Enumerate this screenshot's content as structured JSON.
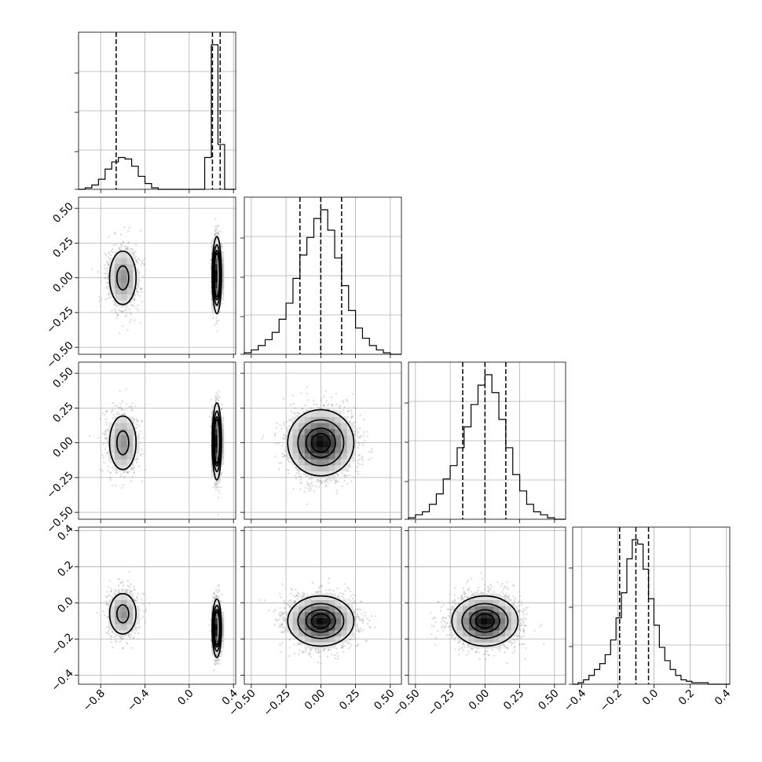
{
  "chart_data": {
    "type": "corner",
    "dimensions": 4,
    "parameters": [
      {
        "index": 0,
        "range": [
          -1.0,
          0.42
        ],
        "ticks": [
          -0.8,
          -0.4,
          0.0,
          0.4
        ],
        "tick_labels": [
          "−0.8",
          "−0.4",
          "0.0",
          "0.4"
        ]
      },
      {
        "index": 1,
        "range": [
          -0.55,
          0.58
        ],
        "ticks": [
          -0.5,
          -0.25,
          0.0,
          0.25,
          0.5
        ],
        "tick_labels": [
          "−0.50",
          "−0.25",
          "0.00",
          "0.25",
          "0.50"
        ]
      },
      {
        "index": 2,
        "range": [
          -0.55,
          0.58
        ],
        "ticks": [
          -0.5,
          -0.25,
          0.0,
          0.25,
          0.5
        ],
        "tick_labels": [
          "−0.50",
          "−0.25",
          "0.00",
          "0.25",
          "0.50"
        ]
      },
      {
        "index": 3,
        "range": [
          -0.45,
          0.42
        ],
        "ticks": [
          -0.4,
          -0.2,
          0.0,
          0.2,
          0.4
        ],
        "tick_labels": [
          "−0.4",
          "−0.2",
          "0.0",
          "0.2",
          "0.4"
        ]
      }
    ],
    "histograms": [
      {
        "param": 0,
        "quantile_lines": [
          -0.66,
          0.21,
          0.28
        ],
        "bin_edges": [
          -1.0,
          -0.94,
          -0.88,
          -0.82,
          -0.76,
          -0.7,
          -0.64,
          -0.58,
          -0.52,
          -0.46,
          -0.4,
          -0.34,
          -0.28,
          -0.22,
          -0.16,
          -0.1,
          -0.04,
          0.02,
          0.08,
          0.14,
          0.2,
          0.26,
          0.32,
          0.38,
          0.42
        ],
        "counts": [
          0,
          0.01,
          0.03,
          0.07,
          0.14,
          0.19,
          0.22,
          0.21,
          0.16,
          0.09,
          0.04,
          0.01,
          0,
          0,
          0,
          0,
          0,
          0,
          0,
          0.22,
          1.0,
          0.31,
          0,
          0
        ]
      },
      {
        "param": 1,
        "quantile_lines": [
          -0.15,
          0.0,
          0.15
        ],
        "bin_edges": [
          -0.55,
          -0.5,
          -0.45,
          -0.4,
          -0.35,
          -0.3,
          -0.25,
          -0.2,
          -0.15,
          -0.1,
          -0.05,
          0.0,
          0.05,
          0.1,
          0.15,
          0.2,
          0.25,
          0.3,
          0.35,
          0.4,
          0.45,
          0.5,
          0.58
        ],
        "counts": [
          0.01,
          0.03,
          0.06,
          0.1,
          0.15,
          0.24,
          0.35,
          0.52,
          0.68,
          0.8,
          0.93,
          0.99,
          0.85,
          0.66,
          0.47,
          0.3,
          0.18,
          0.11,
          0.06,
          0.03,
          0.01,
          0.0
        ]
      },
      {
        "param": 2,
        "quantile_lines": [
          -0.16,
          0.0,
          0.15
        ],
        "bin_edges": [
          -0.55,
          -0.5,
          -0.45,
          -0.4,
          -0.35,
          -0.3,
          -0.25,
          -0.2,
          -0.15,
          -0.1,
          -0.05,
          0.0,
          0.05,
          0.1,
          0.15,
          0.2,
          0.25,
          0.3,
          0.35,
          0.4,
          0.45,
          0.5,
          0.58
        ],
        "counts": [
          0.01,
          0.03,
          0.05,
          0.1,
          0.17,
          0.27,
          0.36,
          0.48,
          0.62,
          0.77,
          0.9,
          0.97,
          0.85,
          0.67,
          0.48,
          0.3,
          0.19,
          0.1,
          0.05,
          0.03,
          0.01,
          0.0
        ]
      },
      {
        "param": 3,
        "quantile_lines": [
          -0.19,
          -0.1,
          -0.03
        ],
        "bin_edges": [
          -0.45,
          -0.42,
          -0.39,
          -0.36,
          -0.33,
          -0.3,
          -0.27,
          -0.24,
          -0.21,
          -0.18,
          -0.15,
          -0.12,
          -0.09,
          -0.06,
          -0.03,
          0.0,
          0.03,
          0.06,
          0.09,
          0.12,
          0.15,
          0.18,
          0.21,
          0.24,
          0.27,
          0.3,
          0.33,
          0.36,
          0.42
        ],
        "counts": [
          0.0,
          0.01,
          0.03,
          0.06,
          0.1,
          0.14,
          0.2,
          0.3,
          0.45,
          0.62,
          0.85,
          0.98,
          0.95,
          0.78,
          0.58,
          0.4,
          0.25,
          0.16,
          0.1,
          0.06,
          0.03,
          0.02,
          0.01,
          0.01,
          0.01,
          0.0,
          0.0,
          0.0
        ]
      }
    ],
    "pairs": [
      {
        "row": 1,
        "col": 0,
        "modes": [
          {
            "mx": -0.6,
            "my": 0.0,
            "sx": 0.075,
            "sy": 0.12,
            "w": 0.3,
            "d": 0.25
          },
          {
            "mx": 0.25,
            "my": 0.02,
            "sx": 0.018,
            "sy": 0.12,
            "w": 0.7,
            "d": 1.0
          }
        ]
      },
      {
        "row": 2,
        "col": 0,
        "modes": [
          {
            "mx": -0.6,
            "my": 0.0,
            "sx": 0.075,
            "sy": 0.12,
            "w": 0.3,
            "d": 0.25
          },
          {
            "mx": 0.25,
            "my": 0.01,
            "sx": 0.018,
            "sy": 0.12,
            "w": 0.7,
            "d": 1.0
          }
        ]
      },
      {
        "row": 2,
        "col": 1,
        "modes": [
          {
            "mx": 0.0,
            "my": 0.0,
            "sx": 0.12,
            "sy": 0.12,
            "w": 1.0,
            "d": 1.0
          }
        ]
      },
      {
        "row": 3,
        "col": 0,
        "modes": [
          {
            "mx": -0.6,
            "my": -0.06,
            "sx": 0.075,
            "sy": 0.07,
            "w": 0.3,
            "d": 0.25
          },
          {
            "mx": 0.25,
            "my": -0.14,
            "sx": 0.018,
            "sy": 0.07,
            "w": 0.7,
            "d": 1.0
          }
        ]
      },
      {
        "row": 3,
        "col": 1,
        "modes": [
          {
            "mx": 0.0,
            "my": -0.1,
            "sx": 0.12,
            "sy": 0.07,
            "w": 1.0,
            "d": 1.0
          }
        ]
      },
      {
        "row": 3,
        "col": 2,
        "modes": [
          {
            "mx": 0.0,
            "my": -0.1,
            "sx": 0.12,
            "sy": 0.07,
            "w": 1.0,
            "d": 1.0
          }
        ]
      }
    ],
    "contour_levels": [
      0.14,
      0.39,
      0.68,
      0.86
    ],
    "grid": true,
    "title": "",
    "legend": "none"
  }
}
